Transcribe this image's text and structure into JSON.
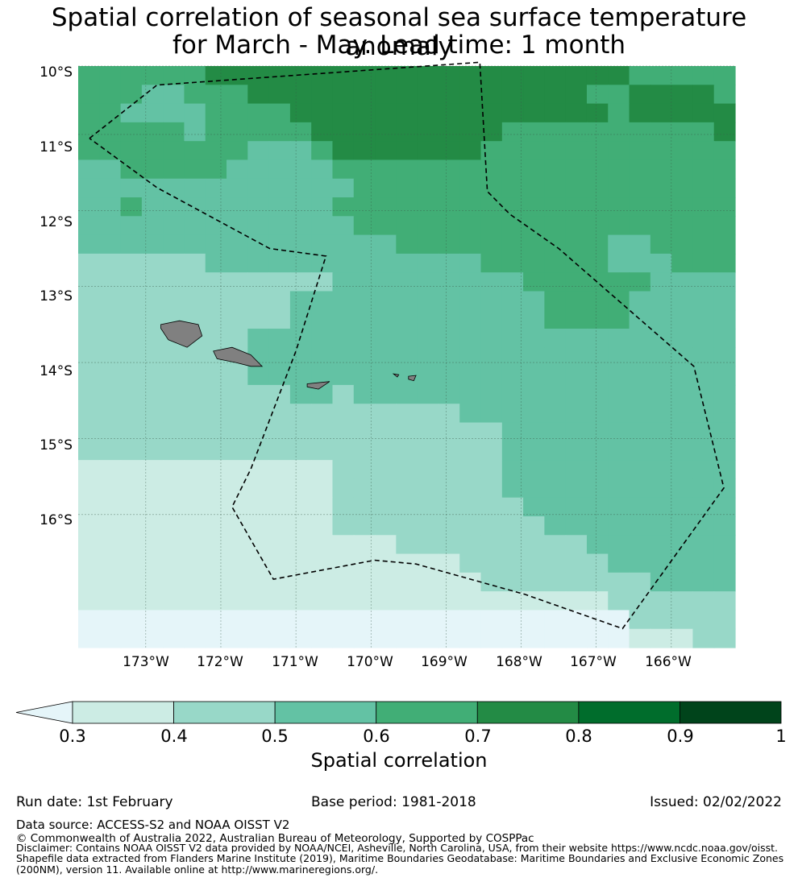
{
  "title_line1": "Spatial correlation of seasonal sea surface temperature anomaly",
  "title_line2": "for March - May. Lead time: 1 month",
  "lat_labels": [
    "10°S",
    "11°S",
    "12°S",
    "13°S",
    "14°S",
    "15°S",
    "16°S"
  ],
  "lon_labels": [
    "173°W",
    "172°W",
    "171°W",
    "170°W",
    "169°W",
    "168°W",
    "167°W",
    "166°W"
  ],
  "colorbar": {
    "label": "Spatial correlation",
    "ticks": [
      "0.3",
      "0.4",
      "0.5",
      "0.6",
      "0.7",
      "0.8",
      "0.9",
      "1"
    ],
    "colors": [
      "#ccece4",
      "#98d8c8",
      "#63c2a4",
      "#41ae76",
      "#238b45",
      "#006d2c",
      "#00441b"
    ],
    "under_color": "#e5f5f9"
  },
  "footer": {
    "run_date": "Run date: 1st February",
    "base_period": "Base period: 1981-2018",
    "issued": "Issued: 02/02/2022",
    "data_source": "Data source: ACCESS-S2 and NOAA OISST V2",
    "copyright": "© Commonwealth of Australia 2022, Australian Bureau of Meteorology, Supported by COSPPac",
    "disclaimer_1": "Disclaimer: Contains NOAA OISST V2 data provided by NOAA/NCEI, Asheville, North Carolina, USA, from their website https://www.ncdc.noaa.gov/oisst.",
    "disclaimer_2": "Shapefile data extracted from Flanders Marine Institute (2019), Maritime Boundaries Geodatabase: Maritime Boundaries and Exclusive Economic Zones",
    "disclaimer_3": "(200NM), version 11. Available online at http://www.marineregions.org/."
  },
  "map": {
    "lon_range": [
      -173.9,
      -165.15
    ],
    "lat_range": [
      -17.75,
      -10.1
    ],
    "correlation_rows": [
      "4444445555555555555555555544444",
      "4443344455555555555555554455554",
      "4433334444555555555555555455555",
      "4444434444455555555544444444445",
      "4444444433345555555444444444444",
      "3344444333334444444444444444444",
      "3333333333333444444444444444444",
      "3343333333334444444444444444444",
      "3333333333333444444444444444444",
      "3333333333333334444444444334444",
      "2222223333333333333444444333444",
      "2222222222223333333334444443333",
      "2222222222333333333333444433333",
      "2222222222333333333333444433333",
      "2222222233333333333333333333333",
      "2222222233333333333333333333333",
      "2222222233333333333333333333333",
      "2222222222332333333333333333333",
      "2222222222222222223333333333333",
      "2222222222222222222233333333333",
      "2222222222222222222233333333333",
      "1111111111112222222233333333333",
      "1111111111112222222233333333333",
      "1111111111112222222223333333333",
      "1111111111112222222222333333333",
      "1111111111111112222222223333333",
      "1111111111111111112222222333333",
      "1111111111111111111222222223333",
      "1111111111111111111111111222222",
      "0000000000000000000000000022222",
      "0000000000000000000000000011122"
    ],
    "eez_boundary": [
      [
        -173.75,
        -11.05
      ],
      [
        -172.85,
        -10.35
      ],
      [
        -168.55,
        -10.05
      ],
      [
        -168.45,
        -11.75
      ],
      [
        -168.15,
        -12.05
      ],
      [
        -167.5,
        -12.5
      ],
      [
        -165.7,
        -14.05
      ],
      [
        -165.3,
        -15.65
      ],
      [
        -166.65,
        -17.5
      ],
      [
        -167.95,
        -17.05
      ],
      [
        -169.4,
        -16.65
      ],
      [
        -169.95,
        -16.6
      ],
      [
        -171.3,
        -16.85
      ],
      [
        -171.85,
        -15.9
      ],
      [
        -171.6,
        -15.4
      ],
      [
        -171.0,
        -13.85
      ],
      [
        -170.6,
        -12.6
      ],
      [
        -171.35,
        -12.5
      ],
      [
        -172.85,
        -11.7
      ],
      [
        -173.75,
        -11.05
      ]
    ],
    "islands": [
      [
        [
          -172.8,
          -13.5
        ],
        [
          -172.55,
          -13.45
        ],
        [
          -172.3,
          -13.5
        ],
        [
          -172.25,
          -13.65
        ],
        [
          -172.45,
          -13.8
        ],
        [
          -172.7,
          -13.7
        ],
        [
          -172.8,
          -13.55
        ],
        [
          -172.8,
          -13.5
        ]
      ],
      [
        [
          -172.1,
          -13.85
        ],
        [
          -171.85,
          -13.8
        ],
        [
          -171.6,
          -13.9
        ],
        [
          -171.45,
          -14.05
        ],
        [
          -171.6,
          -14.05
        ],
        [
          -171.8,
          -14.0
        ],
        [
          -172.05,
          -13.95
        ],
        [
          -172.1,
          -13.85
        ]
      ],
      [
        [
          -170.85,
          -14.28
        ],
        [
          -170.55,
          -14.25
        ],
        [
          -170.7,
          -14.35
        ],
        [
          -170.85,
          -14.32
        ],
        [
          -170.85,
          -14.28
        ]
      ],
      [
        [
          -169.5,
          -14.18
        ],
        [
          -169.4,
          -14.17
        ],
        [
          -169.43,
          -14.24
        ],
        [
          -169.5,
          -14.22
        ],
        [
          -169.5,
          -14.18
        ]
      ],
      [
        [
          -169.7,
          -14.15
        ],
        [
          -169.63,
          -14.16
        ],
        [
          -169.65,
          -14.19
        ],
        [
          -169.7,
          -14.15
        ]
      ]
    ]
  }
}
